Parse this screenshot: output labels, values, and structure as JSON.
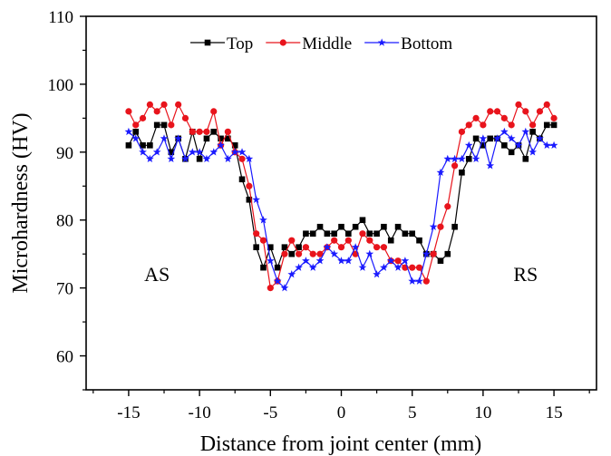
{
  "chart_data": {
    "type": "line",
    "xlabel": "Distance from joint center (mm)",
    "ylabel": "Microhardness (HV)",
    "xlim": [
      -18,
      18
    ],
    "ylim": [
      55,
      110
    ],
    "xticks": [
      -15,
      -10,
      -5,
      0,
      5,
      10,
      15
    ],
    "yticks": [
      60,
      70,
      80,
      90,
      100,
      110
    ],
    "legend_position": "top-center",
    "annotations": [
      {
        "text": "AS",
        "x": -13,
        "y": 71
      },
      {
        "text": "RS",
        "x": 13,
        "y": 71
      }
    ],
    "x": [
      -15,
      -14.5,
      -14,
      -13.5,
      -13,
      -12.5,
      -12,
      -11.5,
      -11,
      -10.5,
      -10,
      -9.5,
      -9,
      -8.5,
      -8,
      -7.5,
      -7,
      -6.5,
      -6,
      -5.5,
      -5,
      -4.5,
      -4,
      -3.5,
      -3,
      -2.5,
      -2,
      -1.5,
      -1,
      -0.5,
      0,
      0.5,
      1,
      1.5,
      2,
      2.5,
      3,
      3.5,
      4,
      4.5,
      5,
      5.5,
      6,
      6.5,
      7,
      7.5,
      8,
      8.5,
      9,
      9.5,
      10,
      10.5,
      11,
      11.5,
      12,
      12.5,
      13,
      13.5,
      14,
      14.5,
      15
    ],
    "series": [
      {
        "name": "Top",
        "color": "#000000",
        "marker": "square",
        "values": [
          91,
          93,
          91,
          91,
          94,
          94,
          90,
          92,
          89,
          93,
          89,
          92,
          93,
          92,
          92,
          91,
          86,
          83,
          76,
          73,
          76,
          73,
          76,
          75,
          76,
          78,
          78,
          79,
          78,
          78,
          79,
          78,
          79,
          80,
          78,
          78,
          79,
          77,
          79,
          78,
          78,
          77,
          75,
          75,
          74,
          75,
          79,
          87,
          89,
          92,
          91,
          92,
          92,
          91,
          90,
          91,
          89,
          93,
          92,
          94,
          94
        ]
      },
      {
        "name": "Middle",
        "color": "#e8141c",
        "marker": "circle",
        "values": [
          96,
          94,
          95,
          97,
          96,
          97,
          94,
          97,
          95,
          93,
          93,
          93,
          96,
          91,
          93,
          90,
          89,
          85,
          78,
          77,
          70,
          71,
          75,
          77,
          75,
          76,
          75,
          75,
          76,
          77,
          76,
          77,
          75,
          78,
          77,
          76,
          76,
          74,
          74,
          73,
          73,
          73,
          71,
          75,
          79,
          82,
          88,
          93,
          94,
          95,
          94,
          96,
          96,
          95,
          94,
          97,
          96,
          94,
          96,
          97,
          95
        ]
      },
      {
        "name": "Bottom",
        "color": "#1a1aff",
        "marker": "star",
        "values": [
          93,
          92,
          90,
          89,
          90,
          92,
          89,
          92,
          89,
          90,
          90,
          89,
          90,
          91,
          89,
          90,
          90,
          89,
          83,
          80,
          74,
          71,
          70,
          72,
          73,
          74,
          73,
          74,
          76,
          75,
          74,
          74,
          76,
          73,
          75,
          72,
          73,
          74,
          73,
          74,
          71,
          71,
          75,
          79,
          87,
          89,
          89,
          89,
          91,
          89,
          92,
          88,
          92,
          93,
          92,
          91,
          93,
          90,
          92,
          91,
          91
        ]
      }
    ]
  }
}
